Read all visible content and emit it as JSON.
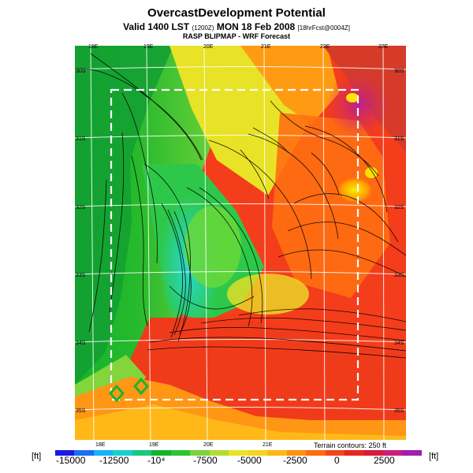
{
  "header": {
    "title": "OvercastDevelopment Potential",
    "valid_prefix": "Valid 1400 LST",
    "valid_code": "(1200Z)",
    "valid_suffix": "MON 18 Feb 2008",
    "forecast_code": "[18hrFcst@0004Z]",
    "subtitle": "RASP BLIPMAP - WRF Forecast"
  },
  "map": {
    "lon_ticks_top": [
      "18E",
      "19E",
      "20E",
      "21E",
      "22E",
      "23E"
    ],
    "lon_ticks_bottom": [
      "18E",
      "19E",
      "20E",
      "21E"
    ],
    "lat_ticks_left": [
      "30S",
      "31S",
      "32S",
      "33S",
      "34S",
      "35S"
    ],
    "lat_ticks_right": [
      "30S",
      "31S",
      "32S",
      "33S",
      "34S",
      "35S"
    ],
    "terrain_note": "Terrain contours: 250 ft",
    "background_colors": {
      "sea_green": "#12b52a",
      "mid_green": "#6fd23a",
      "yellow": "#f0e020",
      "orange": "#ff8a10",
      "red": "#f23a1a",
      "magenta": "#c8208a",
      "cyan": "#20d8d0"
    }
  },
  "colorbar": {
    "unit": "[ft]",
    "labels": [
      "-15000",
      "-12500",
      "-10⁴",
      "-7500",
      "-5000",
      "-2500",
      "0",
      "2500"
    ],
    "colors": [
      "#1a1ae6",
      "#1a6ff0",
      "#15b4f5",
      "#16d0d0",
      "#16c880",
      "#12b52a",
      "#2dc230",
      "#7bd23a",
      "#b4dc32",
      "#e8e424",
      "#f4d41c",
      "#ffb614",
      "#ff9010",
      "#ff6a10",
      "#f2461c",
      "#e8261c",
      "#d81a3c",
      "#c8207a",
      "#a01eb0"
    ]
  }
}
